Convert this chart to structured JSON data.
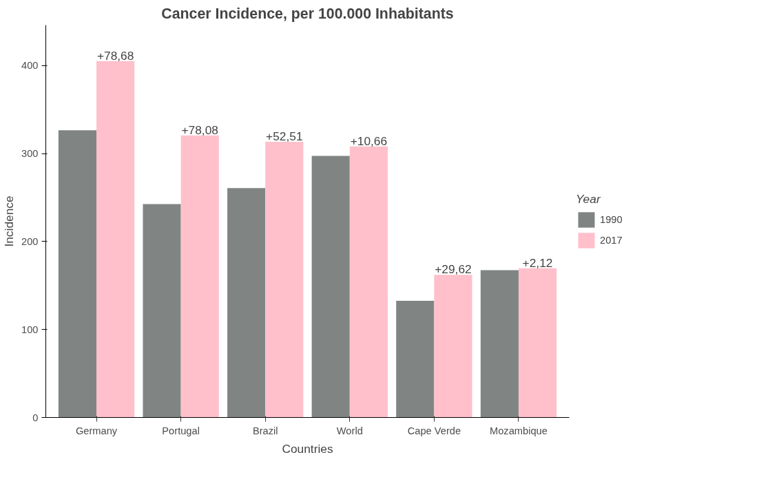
{
  "chart_data": {
    "type": "bar",
    "title": "Cancer Incidence, per 100.000 Inhabitants",
    "xlabel": "Countries",
    "ylabel": "Incidence",
    "legend_title": "Year",
    "categories": [
      "Germany",
      "Portugal",
      "Brazil",
      "World",
      "Cape Verde",
      "Mozambique"
    ],
    "series": [
      {
        "name": "1990",
        "color": "#808584",
        "values": [
          326.5,
          242.6,
          260.8,
          297.4,
          132.6,
          167.5
        ]
      },
      {
        "name": "2017",
        "color": "#ffc0cb",
        "values": [
          405.2,
          320.7,
          313.3,
          308.1,
          162.2,
          169.6
        ]
      }
    ],
    "ylim": [
      0,
      446
    ],
    "yticks": [
      0,
      100,
      200,
      300,
      400
    ],
    "grid": false,
    "legend": "right",
    "annotations": [
      {
        "text": "+78,68",
        "x": "Germany",
        "y": 405.2
      },
      {
        "text": "+78,08",
        "x": "Portugal",
        "y": 320.7
      },
      {
        "text": "+52,51",
        "x": "Brazil",
        "y": 313.3
      },
      {
        "text": "+10,66",
        "x": "World",
        "y": 308.1
      },
      {
        "text": "+29,62",
        "x": "Cape Verde",
        "y": 162.2
      },
      {
        "text": "+2,12",
        "x": "Mozambique",
        "y": 169.6
      }
    ]
  }
}
